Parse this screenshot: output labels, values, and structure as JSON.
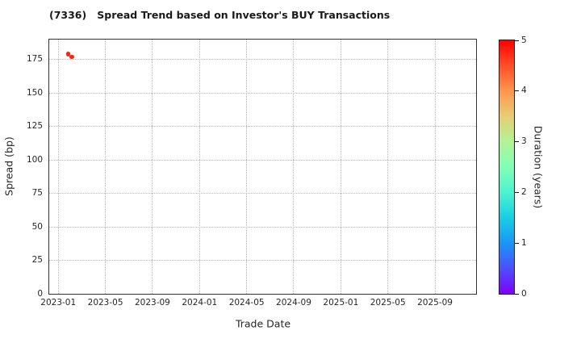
{
  "window": {
    "background": "#ffffff"
  },
  "chart_data": {
    "type": "scatter",
    "title": "(7336)   Spread Trend based on Investor's BUY Transactions",
    "xlabel": "Trade Date",
    "ylabel": "Spread (bp)",
    "x_ticks": [
      "2023-01",
      "2023-05",
      "2023-09",
      "2024-01",
      "2024-05",
      "2024-09",
      "2025-01",
      "2025-05",
      "2025-09"
    ],
    "xlim": [
      "2022-12-08",
      "2025-12-16"
    ],
    "y_ticks": [
      0,
      25,
      50,
      75,
      100,
      125,
      150,
      175
    ],
    "ylim": [
      0,
      190
    ],
    "grid": true,
    "points": [
      {
        "date": "2023-01-27",
        "spread_bp": 179,
        "duration_years": 4.8
      },
      {
        "date": "2023-02-05",
        "spread_bp": 177,
        "duration_years": 4.8
      }
    ],
    "colorbar": {
      "label": "Duration (years)",
      "range": [
        0,
        5
      ],
      "ticks": [
        0,
        1,
        2,
        3,
        4,
        5
      ],
      "colormap": "rainbow",
      "gradient_stops": [
        "#8000ff",
        "#4d4ffc",
        "#1996f3",
        "#19cee3",
        "#4df3ce",
        "#80ffb5",
        "#b3f396",
        "#e6ce74",
        "#ff964f",
        "#ff4f28",
        "#ff0000"
      ]
    },
    "colors": {
      "grid": "#b8b8b8",
      "spine": "#333333",
      "text": "#262626",
      "title": "#1a1a1a"
    }
  }
}
